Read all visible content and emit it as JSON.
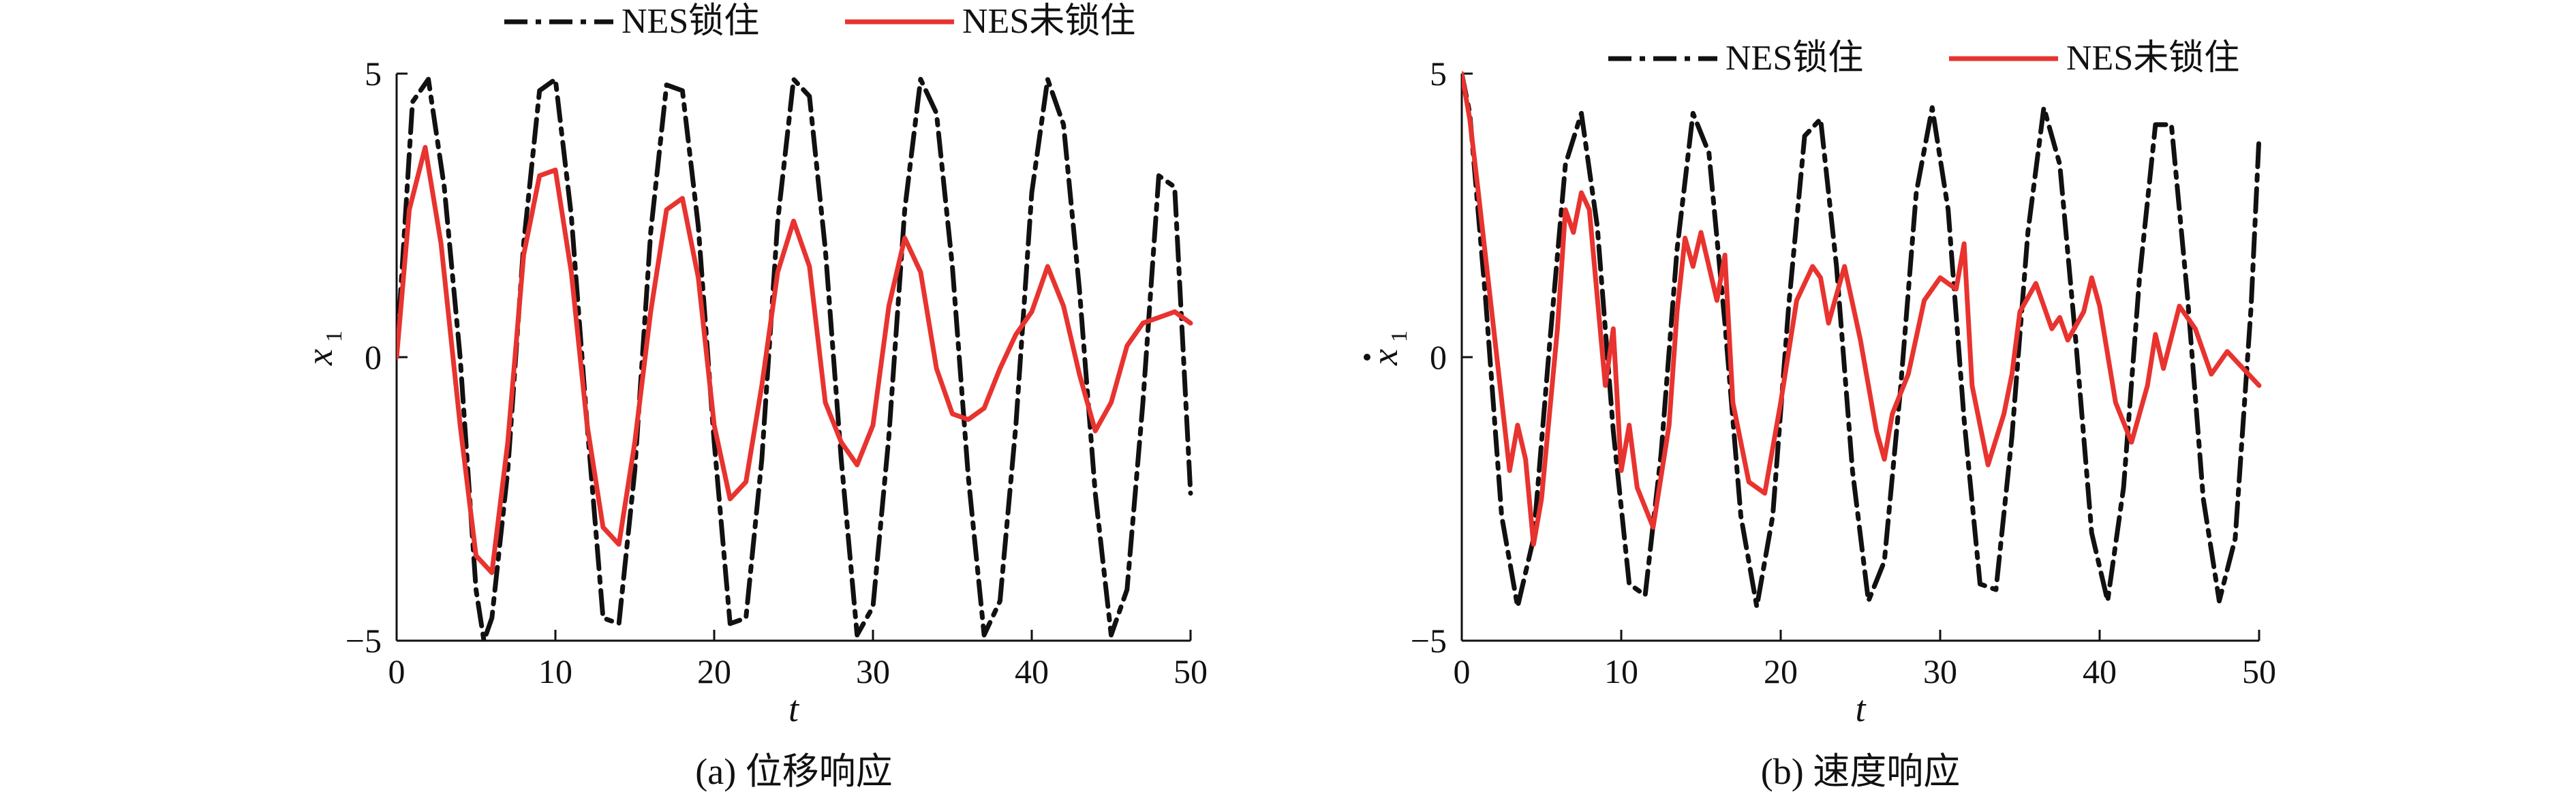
{
  "chart_data": [
    {
      "type": "line",
      "caption": "(a) 位移响应",
      "xlabel": "t",
      "ylabel": "x",
      "ylabel_sub": "1",
      "ylabel_dot": false,
      "xlim": [
        0,
        50
      ],
      "ylim": [
        -5,
        5
      ],
      "xticks": [
        0,
        10,
        20,
        30,
        40,
        50
      ],
      "yticks": [
        -5,
        0,
        5
      ],
      "xtick_labels": [
        "0",
        "10",
        "20",
        "30",
        "40",
        "50"
      ],
      "ytick_labels": [
        "−5",
        "0",
        "5"
      ],
      "grid": false,
      "legend_position": "top",
      "series": [
        {
          "name": "NES锁住",
          "color": "#111111",
          "dash": "dashdot",
          "x": [
            0,
            1,
            2,
            3,
            4,
            5,
            5.5,
            6,
            7,
            8,
            9,
            10,
            11,
            12,
            13,
            14,
            15,
            16,
            17,
            18,
            19,
            20,
            21,
            22,
            23,
            24,
            25,
            26,
            27,
            28,
            29,
            30,
            31,
            32,
            33,
            34,
            35,
            36,
            37,
            38,
            39,
            40,
            41,
            42,
            43,
            44,
            45,
            46,
            47,
            48,
            49,
            50
          ],
          "y": [
            0,
            4.5,
            4.9,
            3.0,
            0,
            -4.1,
            -5.0,
            -4.6,
            -2.0,
            2.0,
            4.7,
            4.9,
            2.5,
            -1.2,
            -4.6,
            -4.7,
            -2.0,
            2.2,
            4.8,
            4.7,
            2.3,
            -1.5,
            -4.7,
            -4.6,
            -1.8,
            2.4,
            4.9,
            4.6,
            1.9,
            -1.8,
            -4.9,
            -4.4,
            -1.4,
            2.6,
            4.9,
            4.3,
            1.6,
            -2.1,
            -4.9,
            -4.3,
            -1.2,
            2.9,
            4.9,
            4.1,
            1.2,
            -2.4,
            -4.9,
            -4.1,
            -0.8,
            3.2,
            3.0,
            -2.4
          ]
        },
        {
          "name": "NES未锁住",
          "color": "#e8332f",
          "dash": "solid",
          "x": [
            0,
            0.8,
            1.8,
            2.8,
            4,
            5,
            6,
            7,
            8,
            9,
            10,
            11,
            12,
            13,
            14,
            15,
            16,
            17,
            18,
            19,
            20,
            21,
            22,
            23,
            24,
            25,
            26,
            27,
            28,
            29,
            30,
            31,
            32,
            33,
            34,
            35,
            36,
            37,
            38,
            39,
            40,
            41,
            42,
            43,
            44,
            45,
            46,
            47,
            48,
            49,
            50
          ],
          "y": [
            0,
            2.6,
            3.7,
            2.0,
            -1.2,
            -3.5,
            -3.8,
            -1.5,
            1.8,
            3.2,
            3.3,
            1.5,
            -1.2,
            -3.0,
            -3.3,
            -1.5,
            0.8,
            2.6,
            2.8,
            1.4,
            -1.2,
            -2.5,
            -2.2,
            -0.5,
            1.5,
            2.4,
            1.6,
            -0.8,
            -1.5,
            -1.9,
            -1.2,
            0.9,
            2.1,
            1.5,
            -0.2,
            -1.0,
            -1.1,
            -0.9,
            -0.2,
            0.4,
            0.8,
            1.6,
            0.9,
            -0.3,
            -1.3,
            -0.8,
            0.2,
            0.6,
            0.7,
            0.8,
            0.6
          ]
        }
      ]
    },
    {
      "type": "line",
      "caption": "(b) 速度响应",
      "xlabel": "t",
      "ylabel": "x",
      "ylabel_sub": "1",
      "ylabel_dot": true,
      "xlim": [
        0,
        50
      ],
      "ylim": [
        -5,
        5
      ],
      "xticks": [
        0,
        10,
        20,
        30,
        40,
        50
      ],
      "yticks": [
        -5,
        0,
        5
      ],
      "xtick_labels": [
        "0",
        "10",
        "20",
        "30",
        "40",
        "50"
      ],
      "ytick_labels": [
        "−5",
        "0",
        "5"
      ],
      "grid": false,
      "legend_position": "top-right",
      "series": [
        {
          "name": "NES锁住",
          "color": "#111111",
          "dash": "dashdot",
          "x": [
            0,
            0.5,
            1.5,
            2.5,
            3.5,
            4.5,
            5.5,
            6.5,
            7.5,
            8.5,
            9.5,
            10.5,
            11.5,
            12.5,
            13.5,
            14.5,
            15.5,
            16.5,
            17.5,
            18.5,
            19.5,
            20.5,
            21.5,
            22.5,
            23.5,
            24.5,
            25.5,
            26.5,
            27.5,
            28.5,
            29.5,
            30.5,
            31.5,
            32.5,
            33.5,
            34.5,
            35.5,
            36.5,
            37.5,
            38.5,
            39.5,
            40.5,
            41.5,
            42.5,
            43.5,
            44.5,
            45.5,
            46.5,
            47.5,
            48.5,
            49.5,
            50
          ],
          "y": [
            5.0,
            4.3,
            1.0,
            -2.8,
            -4.4,
            -3.2,
            0.2,
            3.4,
            4.3,
            2.3,
            -1.3,
            -4.0,
            -4.2,
            -1.7,
            1.9,
            4.3,
            3.6,
            0.6,
            -2.8,
            -4.4,
            -2.8,
            0.9,
            3.9,
            4.2,
            1.6,
            -2.0,
            -4.3,
            -3.6,
            -0.6,
            2.9,
            4.4,
            2.6,
            -1.1,
            -4.0,
            -4.1,
            -1.4,
            2.2,
            4.4,
            3.4,
            0.3,
            -3.1,
            -4.3,
            -2.3,
            1.4,
            4.1,
            4.1,
            1.1,
            -2.5,
            -4.3,
            -3.2,
            0.9,
            3.9
          ]
        },
        {
          "name": "NES未锁住",
          "color": "#e8332f",
          "dash": "solid",
          "x": [
            0,
            0.5,
            1,
            2,
            3,
            3.5,
            4,
            4.5,
            5,
            6,
            6.5,
            7,
            7.5,
            8,
            9,
            9.5,
            10,
            10.5,
            11,
            12,
            13,
            13.5,
            14,
            14.5,
            15,
            16,
            16.5,
            17,
            18,
            19,
            20,
            21,
            22,
            22.5,
            23,
            24,
            25,
            26,
            26.5,
            27,
            28,
            29,
            30,
            31,
            31.5,
            32,
            33,
            34,
            34.5,
            35,
            36,
            37,
            37.5,
            38,
            39,
            39.5,
            40,
            41,
            42,
            43,
            43.5,
            44,
            45,
            46,
            47,
            48,
            49,
            50
          ],
          "y": [
            5.0,
            4.2,
            3.0,
            0.5,
            -2.0,
            -1.2,
            -1.8,
            -3.3,
            -2.5,
            0.5,
            2.6,
            2.2,
            2.9,
            2.6,
            -0.5,
            0.5,
            -2.0,
            -1.2,
            -2.3,
            -3.0,
            -1.2,
            0.8,
            2.1,
            1.6,
            2.2,
            1.0,
            1.8,
            -0.8,
            -2.2,
            -2.4,
            -0.8,
            1.0,
            1.6,
            1.4,
            0.6,
            1.6,
            0.3,
            -1.3,
            -1.8,
            -1.0,
            -0.3,
            1.0,
            1.4,
            1.2,
            2.0,
            -0.5,
            -1.9,
            -1.0,
            -0.3,
            0.8,
            1.3,
            0.5,
            0.7,
            0.3,
            0.8,
            1.4,
            0.9,
            -0.8,
            -1.5,
            -0.5,
            0.4,
            -0.2,
            0.9,
            0.5,
            -0.3,
            0.1,
            -0.2,
            -0.5
          ]
        }
      ]
    }
  ]
}
